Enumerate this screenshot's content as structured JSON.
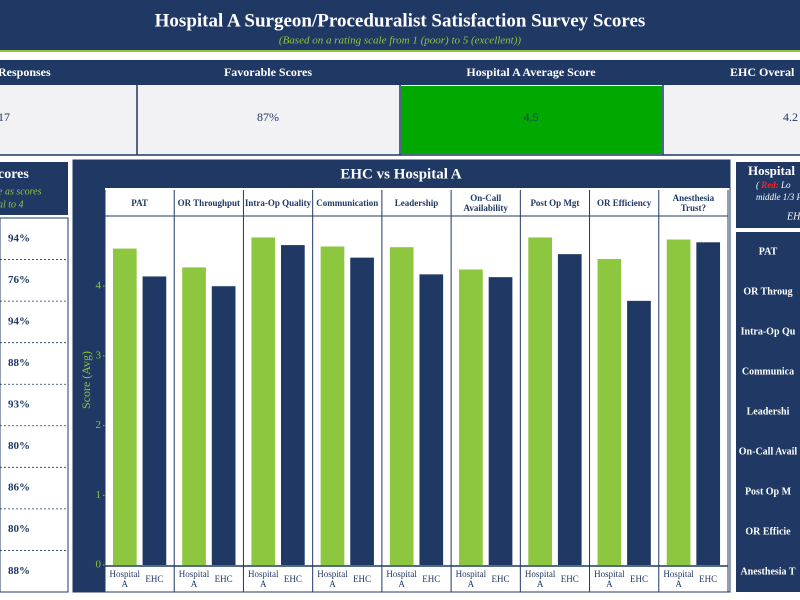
{
  "header": {
    "title": "Hospital A Surgeon/Proceduralist Satisfaction Survey Scores",
    "subtitle": "(Based on a rating scale from 1 (poor) to 5 (excellent))"
  },
  "kpis": [
    {
      "label": "Responses",
      "value": "17"
    },
    {
      "label": "Favorable Scores",
      "value": "87%"
    },
    {
      "label": "Hospital A Average Score",
      "value": "4.5"
    },
    {
      "label": "EHC Overal",
      "value": "4.2"
    }
  ],
  "left_panel": {
    "title": "cores",
    "note": [
      "e as scores",
      "al to 4"
    ],
    "rows": [
      "94%",
      "76%",
      "94%",
      "88%",
      "93%",
      "80%",
      "86%",
      "80%",
      "88%"
    ]
  },
  "right_panel": {
    "title": "Hospital",
    "note_open": "(",
    "note_red": "Red:",
    "note_rest": "Lo",
    "note_line2": "middle 1/3 P",
    "note_line3": "EH",
    "rows": [
      "PAT",
      "OR Throug",
      "Intra-Op Qu",
      "Communica",
      "Leadershi",
      "On-Call Avail",
      "Post Op M",
      "OR Efficie",
      "Anesthesia T"
    ]
  },
  "chart_data": {
    "type": "bar",
    "title": "EHC vs Hospital A",
    "y_label": "Score (Avg)",
    "categories": [
      "PAT",
      "OR Throughput",
      "Intra-Op Quality",
      "Communication",
      "Leadership",
      "On-Call Availability",
      "Post Op Mgt",
      "OR Efficiency",
      "Anesthesia Trust?"
    ],
    "series": [
      {
        "name": "Hospital A",
        "color": "#8dc63f",
        "values": [
          4.54,
          4.27,
          4.7,
          4.57,
          4.56,
          4.24,
          4.7,
          4.39,
          4.67
        ]
      },
      {
        "name": "EHC",
        "color": "#1f3864",
        "values": [
          4.14,
          4.0,
          4.59,
          4.41,
          4.17,
          4.13,
          4.46,
          3.79,
          4.63
        ]
      }
    ],
    "ylim": [
      0,
      4.95
    ],
    "yticks": [
      0,
      1,
      2,
      3,
      4
    ]
  }
}
